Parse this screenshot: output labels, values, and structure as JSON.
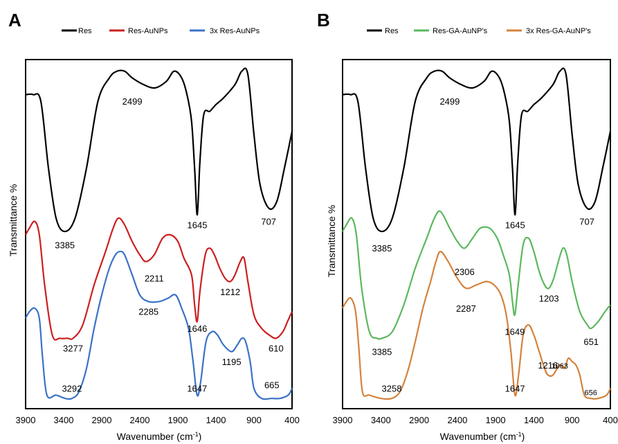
{
  "chart_data": [
    {
      "type": "line",
      "panel": "A",
      "xlabel": "Wavenumber (cm",
      "xlabel_sup": "-1",
      "xlabel_end": ")",
      "ylabel": "Transmittance %",
      "xlim": [
        3900,
        400
      ],
      "x_reversed": true,
      "x_ticks": [
        "3900",
        "3400",
        "2900",
        "2400",
        "1900",
        "1400",
        "900",
        "400"
      ],
      "grid": false,
      "legend_position": "top",
      "series": [
        {
          "name": "Res",
          "color": "#000000",
          "x": [
            3900,
            3800,
            3700,
            3600,
            3500,
            3385,
            3250,
            3100,
            2950,
            2800,
            2700,
            2600,
            2499,
            2350,
            2200,
            2050,
            1950,
            1850,
            1780,
            1720,
            1680,
            1645,
            1610,
            1560,
            1480,
            1400,
            1300,
            1150,
            1060,
            980,
            900,
            820,
            707,
            600,
            500,
            400
          ],
          "y": [
            0.92,
            0.92,
            0.9,
            0.7,
            0.55,
            0.51,
            0.55,
            0.7,
            0.9,
            0.97,
            0.99,
            0.99,
            0.97,
            0.95,
            0.94,
            0.96,
            0.99,
            0.97,
            0.92,
            0.84,
            0.7,
            0.56,
            0.72,
            0.86,
            0.87,
            0.89,
            0.91,
            0.95,
            0.99,
            0.98,
            0.8,
            0.65,
            0.58,
            0.6,
            0.7,
            0.81
          ]
        },
        {
          "name": "Res-AuNPs",
          "color": "#cc1f1f",
          "x": [
            3900,
            3850,
            3780,
            3720,
            3650,
            3550,
            3450,
            3350,
            3277,
            3150,
            3000,
            2850,
            2750,
            2680,
            2600,
            2500,
            2400,
            2320,
            2211,
            2100,
            2000,
            1900,
            1820,
            1720,
            1680,
            1646,
            1610,
            1540,
            1480,
            1420,
            1350,
            1280,
            1212,
            1150,
            1080,
            1030,
            980,
            900,
            800,
            700,
            610,
            520,
            460,
            400
          ],
          "y": [
            0.5,
            0.52,
            0.54,
            0.5,
            0.35,
            0.2,
            0.19,
            0.19,
            0.19,
            0.23,
            0.35,
            0.45,
            0.52,
            0.55,
            0.53,
            0.48,
            0.44,
            0.42,
            0.44,
            0.49,
            0.5,
            0.48,
            0.43,
            0.38,
            0.29,
            0.24,
            0.33,
            0.44,
            0.46,
            0.44,
            0.4,
            0.37,
            0.36,
            0.38,
            0.42,
            0.43,
            0.36,
            0.26,
            0.22,
            0.2,
            0.19,
            0.21,
            0.24,
            0.27
          ]
        },
        {
          "name": "3x Res-AuNPs",
          "color": "#3a72c6",
          "x": [
            3900,
            3850,
            3780,
            3720,
            3680,
            3620,
            3500,
            3380,
            3292,
            3200,
            3100,
            3000,
            2900,
            2800,
            2720,
            2660,
            2600,
            2500,
            2400,
            2285,
            2150,
            2030,
            1930,
            1850,
            1760,
            1700,
            1647,
            1600,
            1530,
            1450,
            1380,
            1300,
            1195,
            1120,
            1060,
            1010,
            950,
            900,
            800,
            665,
            560,
            450,
            400
          ],
          "y": [
            0.25,
            0.27,
            0.28,
            0.25,
            0.14,
            0.02,
            0.02,
            0.01,
            0.01,
            0.03,
            0.1,
            0.22,
            0.32,
            0.4,
            0.44,
            0.45,
            0.44,
            0.38,
            0.32,
            0.3,
            0.3,
            0.31,
            0.32,
            0.28,
            0.22,
            0.12,
            0.02,
            0.06,
            0.18,
            0.21,
            0.2,
            0.17,
            0.15,
            0.17,
            0.19,
            0.18,
            0.12,
            0.04,
            0.01,
            0.01,
            0.01,
            0.02,
            0.04
          ]
        }
      ],
      "annotations": [
        {
          "text": "3385",
          "x": 3385,
          "y": 0.46
        },
        {
          "text": "2499",
          "x": 2499,
          "y": 0.89
        },
        {
          "text": "1645",
          "x": 1645,
          "y": 0.52
        },
        {
          "text": "707",
          "x": 707,
          "y": 0.53
        },
        {
          "text": "3277",
          "x": 3277,
          "y": 0.15
        },
        {
          "text": "2211",
          "x": 2211,
          "y": 0.36
        },
        {
          "text": "1646",
          "x": 1646,
          "y": 0.21
        },
        {
          "text": "1212",
          "x": 1212,
          "y": 0.32
        },
        {
          "text": "610",
          "x": 610,
          "y": 0.15
        },
        {
          "text": "2285",
          "x": 2285,
          "y": 0.26
        },
        {
          "text": "3292",
          "x": 3292,
          "y": 0.03
        },
        {
          "text": "1647",
          "x": 1647,
          "y": 0.03
        },
        {
          "text": "1195",
          "x": 1195,
          "y": 0.11
        },
        {
          "text": "665",
          "x": 665,
          "y": 0.04
        }
      ]
    },
    {
      "type": "line",
      "panel": "B",
      "xlabel": "Wavenumber (cm",
      "xlabel_sup": "-1",
      "xlabel_end": ")",
      "ylabel": "Transmittance %",
      "xlim": [
        3900,
        400
      ],
      "x_reversed": true,
      "x_ticks": [
        "3900",
        "3400",
        "2900",
        "2400",
        "1900",
        "1400",
        "900",
        "400"
      ],
      "grid": false,
      "legend_position": "top",
      "series": [
        {
          "name": "Res",
          "color": "#000000",
          "x": [
            3900,
            3800,
            3700,
            3600,
            3500,
            3385,
            3250,
            3100,
            2950,
            2800,
            2700,
            2600,
            2499,
            2350,
            2200,
            2050,
            1950,
            1850,
            1780,
            1720,
            1680,
            1645,
            1610,
            1560,
            1480,
            1400,
            1300,
            1150,
            1060,
            980,
            900,
            820,
            707,
            600,
            500,
            400
          ],
          "y": [
            0.92,
            0.92,
            0.9,
            0.7,
            0.55,
            0.51,
            0.55,
            0.7,
            0.9,
            0.97,
            0.99,
            0.99,
            0.97,
            0.95,
            0.94,
            0.96,
            0.99,
            0.97,
            0.92,
            0.84,
            0.7,
            0.56,
            0.72,
            0.86,
            0.87,
            0.89,
            0.91,
            0.95,
            0.99,
            0.98,
            0.8,
            0.65,
            0.58,
            0.6,
            0.7,
            0.81
          ]
        },
        {
          "name": "Res-GA-AuNP's",
          "color": "#5bb85d",
          "x": [
            3900,
            3850,
            3780,
            3720,
            3650,
            3550,
            3450,
            3385,
            3250,
            3100,
            2950,
            2800,
            2700,
            2620,
            2500,
            2400,
            2306,
            2200,
            2100,
            1980,
            1880,
            1800,
            1720,
            1680,
            1649,
            1610,
            1540,
            1470,
            1400,
            1330,
            1260,
            1203,
            1140,
            1080,
            1020,
            970,
            900,
            800,
            700,
            651,
            560,
            470,
            400
          ],
          "y": [
            0.51,
            0.53,
            0.55,
            0.5,
            0.34,
            0.21,
            0.19,
            0.19,
            0.21,
            0.29,
            0.4,
            0.49,
            0.55,
            0.57,
            0.52,
            0.48,
            0.46,
            0.49,
            0.52,
            0.52,
            0.49,
            0.44,
            0.38,
            0.3,
            0.26,
            0.34,
            0.47,
            0.49,
            0.45,
            0.39,
            0.35,
            0.34,
            0.37,
            0.42,
            0.46,
            0.44,
            0.36,
            0.27,
            0.23,
            0.22,
            0.24,
            0.27,
            0.29
          ]
        },
        {
          "name": "3x Res-GA-AuNP's",
          "color": "#d4823c",
          "x": [
            3900,
            3850,
            3790,
            3730,
            3690,
            3640,
            3550,
            3400,
            3258,
            3150,
            3050,
            2950,
            2850,
            2750,
            2680,
            2620,
            2520,
            2400,
            2287,
            2150,
            2020,
            1920,
            1830,
            1760,
            1700,
            1647,
            1600,
            1540,
            1470,
            1400,
            1330,
            1260,
            1216,
            1150,
            1063,
            1000,
            950,
            900,
            850,
            800,
            740,
            656,
            560,
            450,
            400
          ],
          "y": [
            0.28,
            0.3,
            0.31,
            0.27,
            0.17,
            0.03,
            0.02,
            0.01,
            0.01,
            0.03,
            0.09,
            0.18,
            0.28,
            0.36,
            0.42,
            0.45,
            0.42,
            0.37,
            0.34,
            0.35,
            0.36,
            0.35,
            0.32,
            0.26,
            0.15,
            0.02,
            0.08,
            0.2,
            0.23,
            0.2,
            0.15,
            0.1,
            0.08,
            0.08,
            0.11,
            0.1,
            0.13,
            0.12,
            0.11,
            0.08,
            0.02,
            0.01,
            0.01,
            0.02,
            0.04
          ]
        }
      ],
      "annotations": [
        {
          "text": "2499",
          "x": 2499,
          "y": 0.89
        },
        {
          "text": "3385",
          "x": 3385,
          "y": 0.45
        },
        {
          "text": "1645",
          "x": 1645,
          "y": 0.52
        },
        {
          "text": "707",
          "x": 707,
          "y": 0.53
        },
        {
          "text": "2306",
          "x": 2306,
          "y": 0.38
        },
        {
          "text": "1649",
          "x": 1649,
          "y": 0.2
        },
        {
          "text": "1203",
          "x": 1203,
          "y": 0.3
        },
        {
          "text": "651",
          "x": 651,
          "y": 0.17
        },
        {
          "text": "3385",
          "x": 3385,
          "y": 0.14
        },
        {
          "text": "2287",
          "x": 2287,
          "y": 0.27
        },
        {
          "text": "1216",
          "x": 1216,
          "y": 0.1
        },
        {
          "text": "1063",
          "x": 1063,
          "y": 0.1,
          "small": true
        },
        {
          "text": "3258",
          "x": 3258,
          "y": 0.03
        },
        {
          "text": "1647",
          "x": 1647,
          "y": 0.03
        },
        {
          "text": "656",
          "x": 656,
          "y": 0.02,
          "small": true
        }
      ]
    }
  ]
}
